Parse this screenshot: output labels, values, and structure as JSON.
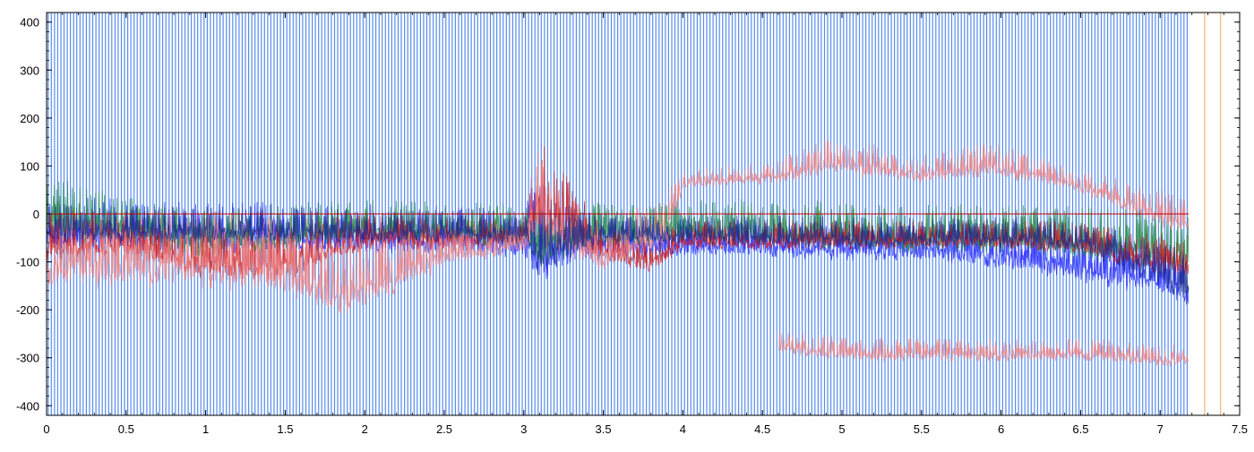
{
  "chart_data": {
    "type": "line",
    "title": "",
    "xlabel": "",
    "ylabel": "",
    "xlim": [
      0,
      7.5
    ],
    "ylim": [
      -420,
      420
    ],
    "x_ticks": [
      0,
      0.5,
      1,
      1.5,
      2,
      2.5,
      3,
      3.5,
      4,
      4.5,
      5,
      5.5,
      6,
      6.5,
      7,
      7.5
    ],
    "x_tick_labels": [
      "0",
      "0.5",
      "1",
      "1.5",
      "2",
      "2.5",
      "3",
      "3.5",
      "4",
      "4.5",
      "5",
      "5.5",
      "6",
      "6.5",
      "7",
      "7.5"
    ],
    "y_ticks": [
      -400,
      -300,
      -200,
      -100,
      0,
      100,
      200,
      300,
      400
    ],
    "y_tick_labels": [
      "-400",
      "-300",
      "-200",
      "-100",
      "0",
      "100",
      "200",
      "300",
      "400"
    ],
    "grid": false,
    "legend": "none",
    "signal_end_x": 7.18,
    "sync_pulse_interval": 0.02,
    "marker_lines_x": [
      7.28,
      7.38
    ],
    "colors": {
      "pulse": "#3b78e7",
      "blue": "#1a1aff",
      "green": "#1f8a3a",
      "red": "#d01010",
      "pink": "#f08080",
      "navy": "#1a2a8a",
      "orange": "#b8860b",
      "marker": "#f4a460",
      "baseline": "#cc0000"
    },
    "series": [
      {
        "color": "blue",
        "x": [
          0,
          0.5,
          1,
          1.5,
          2,
          2.5,
          3,
          3.08,
          3.2,
          3.5,
          4,
          4.5,
          5,
          5.5,
          6,
          6.5,
          7,
          7.18
        ],
        "upper": [
          190,
          170,
          160,
          160,
          150,
          140,
          140,
          380,
          200,
          110,
          90,
          90,
          100,
          90,
          100,
          80,
          80,
          80
        ],
        "lower": [
          -110,
          -110,
          -110,
          -110,
          -110,
          -110,
          -120,
          -220,
          -150,
          -120,
          -110,
          -110,
          -120,
          -120,
          -140,
          -170,
          -200,
          -220
        ]
      },
      {
        "color": "green",
        "x": [
          0,
          0.5,
          1,
          1.5,
          2,
          2.5,
          3,
          3.1,
          3.3,
          3.6,
          4,
          4.5,
          5,
          5.5,
          6,
          6.5,
          7,
          7.18
        ],
        "upper": [
          260,
          160,
          150,
          150,
          140,
          140,
          140,
          200,
          150,
          150,
          150,
          150,
          150,
          150,
          150,
          150,
          150,
          150
        ],
        "lower": [
          -100,
          -90,
          -120,
          -100,
          -80,
          -90,
          -100,
          -150,
          -110,
          -100,
          -90,
          -90,
          -100,
          -110,
          -110,
          -120,
          -140,
          -160
        ]
      },
      {
        "color": "red",
        "x": [
          0,
          0.5,
          1,
          1.5,
          1.8,
          2,
          2.5,
          3,
          3.1,
          3.5,
          3.8,
          4,
          4.5,
          5,
          5.5,
          6,
          6.5,
          7,
          7.18
        ],
        "upper": [
          150,
          110,
          120,
          120,
          110,
          100,
          70,
          60,
          420,
          60,
          60,
          60,
          60,
          60,
          60,
          80,
          60,
          60,
          60
        ],
        "lower": [
          -130,
          -110,
          -170,
          -170,
          -120,
          -100,
          -90,
          -80,
          -100,
          -120,
          -150,
          -90,
          -90,
          -90,
          -90,
          -90,
          -100,
          -150,
          -160
        ]
      },
      {
        "color": "pink",
        "x": [
          0,
          0.5,
          1,
          1.5,
          1.85,
          2,
          2.5,
          3,
          3.08,
          3.5,
          3.9,
          4,
          4.5,
          4.95,
          5.5,
          5.95,
          6.5,
          7,
          7.18
        ],
        "upper": [
          200,
          220,
          220,
          220,
          220,
          180,
          110,
          80,
          410,
          60,
          210,
          150,
          160,
          260,
          200,
          240,
          150,
          160,
          110
        ],
        "lower": [
          -200,
          -200,
          -200,
          -220,
          -270,
          -250,
          -140,
          -100,
          -120,
          -140,
          -100,
          40,
          50,
          60,
          50,
          60,
          30,
          -50,
          -60
        ]
      },
      {
        "color": "pink",
        "x": [
          4.6,
          5,
          5.5,
          6,
          6.5,
          7,
          7.18
        ],
        "upper": [
          -190,
          -190,
          -200,
          -200,
          -200,
          -210,
          -220
        ],
        "lower": [
          -300,
          -320,
          -320,
          -320,
          -320,
          -330,
          -330
        ]
      },
      {
        "color": "navy",
        "x": [
          0,
          0.5,
          1,
          1.5,
          2,
          2.5,
          3,
          3.1,
          3.5,
          4,
          4.5,
          5,
          5.5,
          6,
          6.5,
          7,
          7.18
        ],
        "upper": [
          120,
          110,
          110,
          110,
          100,
          90,
          90,
          250,
          80,
          80,
          80,
          80,
          80,
          80,
          80,
          80,
          80
        ],
        "lower": [
          -80,
          -80,
          -80,
          -80,
          -80,
          -80,
          -80,
          -180,
          -80,
          -80,
          -90,
          -90,
          -90,
          -90,
          -100,
          -180,
          -240
        ]
      }
    ]
  }
}
